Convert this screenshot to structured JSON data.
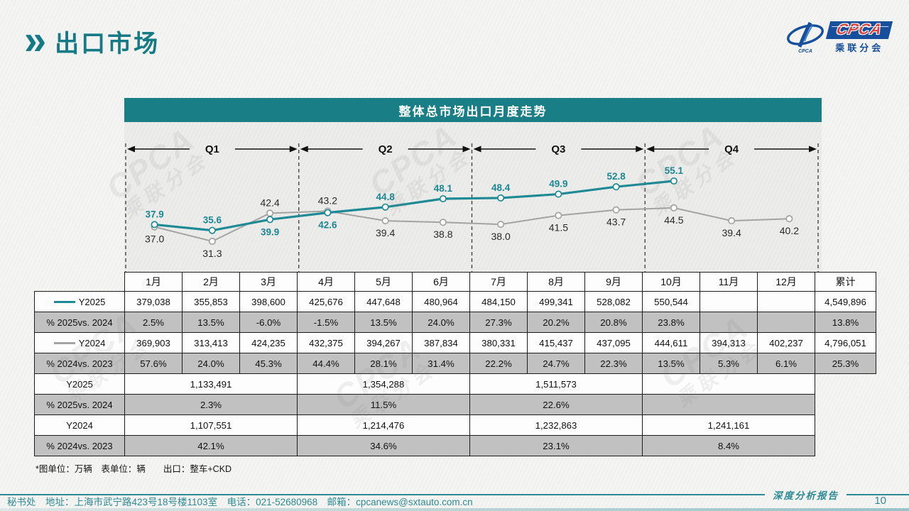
{
  "page": {
    "title": "出口市场"
  },
  "logo": {
    "cpca": "CPCA",
    "sub": "乘联分会",
    "mini": "CPCA"
  },
  "panel": {
    "title": "整体总市场出口月度走势"
  },
  "chart_data": {
    "type": "line",
    "title": "整体总市场出口月度走势",
    "unit": "万辆",
    "x_categories": [
      "1月",
      "2月",
      "3月",
      "4月",
      "5月",
      "6月",
      "7月",
      "8月",
      "9月",
      "10月",
      "11月",
      "12月"
    ],
    "quarters": [
      "Q1",
      "Q2",
      "Q3",
      "Q4"
    ],
    "ylim": [
      29,
      58
    ],
    "grid": "dashed vertical lines at quarter boundaries",
    "legend_position": "table row labels",
    "series": [
      {
        "name": "Y2025",
        "color": "#1e8a96",
        "label_color": "#1b8795",
        "label_bold": true,
        "line_width": 3.2,
        "values": [
          37.9,
          35.6,
          39.9,
          42.6,
          44.8,
          48.1,
          48.4,
          49.9,
          52.8,
          55.1,
          null,
          null
        ],
        "labels": [
          "37.9",
          "35.6",
          "39.9",
          "42.6",
          "44.8",
          "48.1",
          "48.4",
          "49.9",
          "52.8",
          "55.1",
          null,
          null
        ],
        "label_side": [
          "above",
          "above",
          "below",
          "below",
          "above",
          "above",
          "above",
          "above",
          "above",
          "above",
          null,
          null
        ]
      },
      {
        "name": "Y2024",
        "color": "#a3a3a3",
        "label_color": "#2a2a2a",
        "label_bold": false,
        "line_width": 2,
        "values": [
          37.0,
          31.3,
          42.4,
          43.2,
          39.4,
          38.8,
          38.0,
          41.5,
          43.7,
          44.5,
          39.4,
          40.2
        ],
        "labels": [
          "37.0",
          "31.3",
          "42.4",
          "43.2",
          "39.4",
          "38.8",
          "38.0",
          "41.5",
          "43.7",
          "44.5",
          "39.4",
          "40.2"
        ],
        "label_side": [
          "below",
          "below",
          "above",
          "above",
          "below",
          "below",
          "below",
          "below",
          "below",
          "below",
          "below",
          "below"
        ]
      }
    ]
  },
  "table": {
    "months": [
      "1月",
      "2月",
      "3月",
      "4月",
      "5月",
      "6月",
      "7月",
      "8月",
      "9月",
      "10月",
      "11月",
      "12月"
    ],
    "total_label": "累计",
    "monthly_rows": [
      {
        "label": "Y2025",
        "swatch": "#1e8a96",
        "type": "w",
        "values": [
          "379,038",
          "355,853",
          "398,600",
          "425,676",
          "447,648",
          "480,964",
          "484,150",
          "499,341",
          "528,082",
          "550,544",
          "",
          ""
        ],
        "total": "4,549,896"
      },
      {
        "label": "% 2025vs. 2024",
        "type": "g",
        "values": [
          "2.5%",
          "13.5%",
          "-6.0%",
          "-1.5%",
          "13.5%",
          "24.0%",
          "27.3%",
          "20.2%",
          "20.8%",
          "23.8%",
          "",
          ""
        ],
        "total": "13.8%"
      },
      {
        "label": "Y2024",
        "swatch": "#a3a3a3",
        "type": "w",
        "values": [
          "369,903",
          "313,413",
          "424,235",
          "432,375",
          "394,267",
          "387,834",
          "380,331",
          "415,437",
          "437,095",
          "444,611",
          "394,313",
          "402,237"
        ],
        "total": "4,796,051"
      },
      {
        "label": "% 2024vs. 2023",
        "type": "g",
        "values": [
          "57.6%",
          "24.0%",
          "45.3%",
          "44.4%",
          "28.1%",
          "31.4%",
          "22.2%",
          "24.7%",
          "22.3%",
          "13.5%",
          "5.3%",
          "6.1%"
        ],
        "total": "25.3%"
      }
    ],
    "quarterly_rows": [
      {
        "label": "Y2025",
        "type": "w",
        "values": [
          "1,133,491",
          "1,354,288",
          "1,511,573",
          ""
        ]
      },
      {
        "label": "% 2025vs. 2024",
        "type": "g",
        "values": [
          "2.3%",
          "11.5%",
          "22.6%",
          ""
        ]
      },
      {
        "label": "Y2024",
        "type": "w",
        "values": [
          "1,107,551",
          "1,214,476",
          "1,232,863",
          "1,241,161"
        ]
      },
      {
        "label": "% 2024vs. 2023",
        "type": "g",
        "values": [
          "42.1%",
          "34.6%",
          "23.1%",
          "8.4%"
        ]
      }
    ]
  },
  "note": "*图单位：万辆　表单位：辆　　出口：整车+CKD",
  "footer": {
    "contact": "秘书处　地址：上海市武宁路423号18号楼1103室　电话：021-52680968　邮箱：cpcanews@sxtauto.com.cn",
    "report": "深度分析报告",
    "page": "10"
  },
  "watermark": {
    "line1": "CPCA",
    "line2": "乘联分会"
  },
  "colors": {
    "teal": "#1a7e87",
    "teal_title": "#157a86",
    "logo_blue": "#174f9c",
    "negative_red": "#fb0d0d",
    "gray_row": "#c1c1c1"
  }
}
